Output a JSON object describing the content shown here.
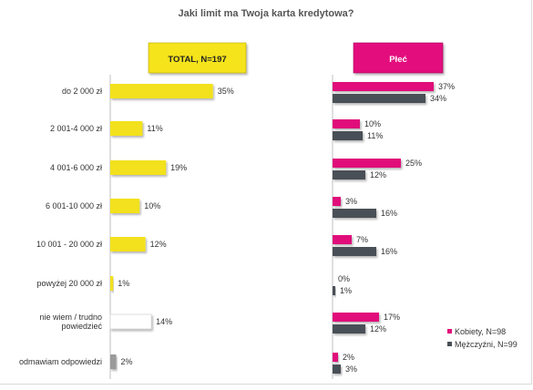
{
  "chart_data": {
    "type": "bar",
    "title": "Jaki limit ma Twoja karta kredytowa?",
    "categories": [
      "do 2 000 zł",
      "2 001-4 000 zł",
      "4 001-6 000 zł",
      "6 001-10 000 zł",
      "10 001 - 20 000 zł",
      "powyżej 20 000 zł",
      "nie wiem / trudno powiedzieć",
      "odmawiam odpowiedzi"
    ],
    "category_lines": [
      [
        "do 2 000 zł"
      ],
      [
        "2 001-4 000 zł"
      ],
      [
        "4 001-6 000 zł"
      ],
      [
        "6 001-10 000 zł"
      ],
      [
        "10 001 - 20 000 zł"
      ],
      [
        "powyżej 20 000 zł"
      ],
      [
        "nie wiem / trudno",
        "powiedzieć"
      ],
      [
        "odmawiam odpowiedzi"
      ]
    ],
    "total": {
      "header": "TOTAL, N=197",
      "values": [
        35,
        11,
        19,
        10,
        12,
        1,
        14,
        2
      ],
      "colors": [
        "#f2e11c",
        "#f2e11c",
        "#f2e11c",
        "#f2e11c",
        "#f2e11c",
        "#f2e11c",
        "#ffffff",
        "#9a9a9a"
      ]
    },
    "gender": {
      "header": "Płeć",
      "series": [
        {
          "name": "Kobiety, N=98",
          "color": "#e0107a",
          "values": [
            37,
            10,
            25,
            3,
            7,
            0,
            17,
            2
          ]
        },
        {
          "name": "Mężczyźni, N=99",
          "color": "#4a4f57",
          "values": [
            34,
            11,
            12,
            16,
            16,
            1,
            12,
            3
          ]
        }
      ]
    },
    "value_suffix": "%",
    "xlim": [
      0,
      40
    ],
    "grid": false,
    "legend_position": "bottom-right"
  },
  "colors": {
    "total_header_bg": "#f5e31a",
    "gender_header_bg": "#e3107e",
    "axis": "#bfbfbf",
    "text": "#333333"
  }
}
